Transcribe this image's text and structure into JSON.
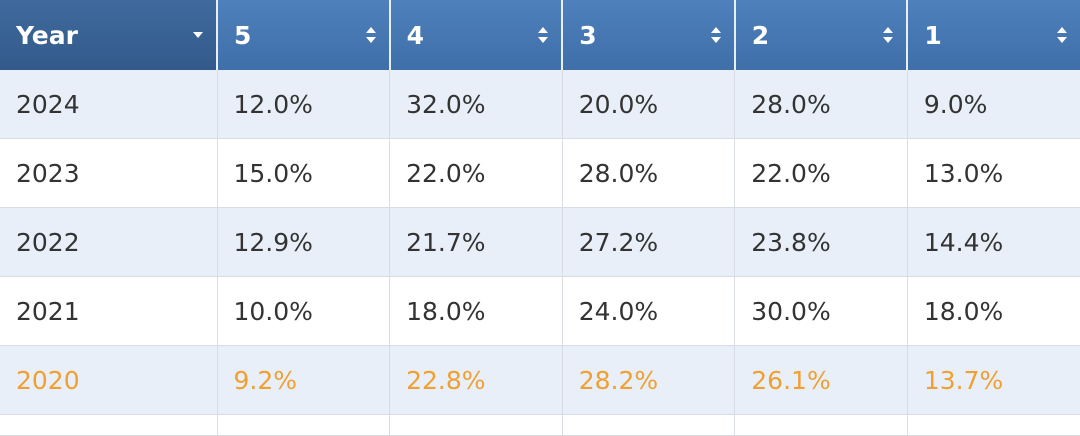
{
  "table": {
    "columns": [
      "Year",
      "5",
      "4",
      "3",
      "2",
      "1"
    ],
    "rows": [
      [
        "2024",
        "12.0%",
        "32.0%",
        "20.0%",
        "28.0%",
        "9.0%"
      ],
      [
        "2023",
        "15.0%",
        "22.0%",
        "28.0%",
        "22.0%",
        "13.0%"
      ],
      [
        "2022",
        "12.9%",
        "21.7%",
        "27.2%",
        "23.8%",
        "14.4%"
      ],
      [
        "2021",
        "10.0%",
        "18.0%",
        "24.0%",
        "30.0%",
        "18.0%"
      ],
      [
        "2020",
        "9.2%",
        "22.8%",
        "28.2%",
        "26.1%",
        "13.7%"
      ]
    ]
  }
}
